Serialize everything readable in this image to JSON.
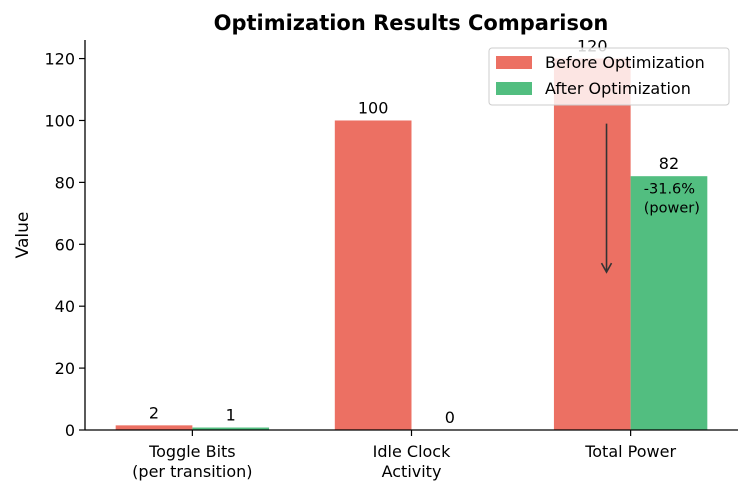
{
  "chart_data": {
    "type": "bar",
    "title": "Optimization Results Comparison",
    "xlabel": "",
    "ylabel": "Value",
    "ylim": [
      0,
      126
    ],
    "yticks": [
      0,
      20,
      40,
      60,
      80,
      100,
      120
    ],
    "grid": false,
    "legend_position": "top-right",
    "categories": [
      [
        "Toggle Bits",
        "(per transition)"
      ],
      [
        "Idle Clock",
        "Activity"
      ],
      [
        "Total Power"
      ]
    ],
    "series": [
      {
        "name": "Before Optimization",
        "color": "#ec7063",
        "values": [
          1.5,
          100,
          120
        ],
        "labels": [
          "2",
          "100",
          "120"
        ]
      },
      {
        "name": "After Optimization",
        "color": "#52be80",
        "values": [
          0.8,
          0,
          82
        ],
        "labels": [
          "1",
          "0",
          "82"
        ]
      }
    ],
    "annotation": {
      "lines": [
        "-31.6%",
        "(power)"
      ],
      "arrow_from": 99,
      "arrow_to": 51,
      "arrow_x": 2.38,
      "text_x": 2.55,
      "text_y": 77
    }
  }
}
